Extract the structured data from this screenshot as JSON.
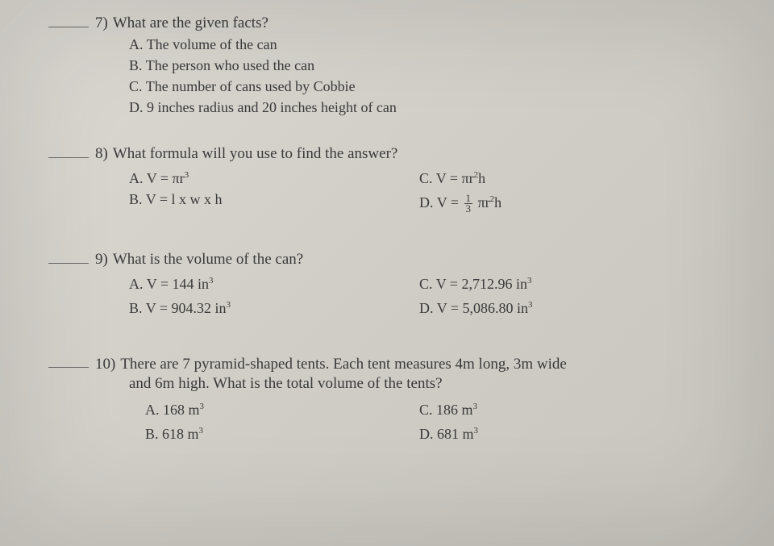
{
  "questions": [
    {
      "number": "7)",
      "stem": "What are the given facts?",
      "layout": "stack",
      "choices": [
        {
          "label": "A.",
          "text": "The volume of the can"
        },
        {
          "label": "B.",
          "text": "The person who used the can"
        },
        {
          "label": "C.",
          "text": "The number of cans used by Cobbie"
        },
        {
          "label": "D.",
          "text": "9 inches radius and 20 inches height of can"
        }
      ]
    },
    {
      "number": "8)",
      "stem": "What formula will you use to find the answer?",
      "layout": "two-col",
      "choices": [
        {
          "label": "A.",
          "html": "V = πr<sup>3</sup>"
        },
        {
          "label": "C.",
          "html": "V = πr<sup>2</sup>h"
        },
        {
          "label": "B.",
          "html": "V = l x w x h"
        },
        {
          "label": "D.",
          "html": "V = <span class='frac'><span class='num'>1</span><span class='den'>3</span></span> πr<sup>2</sup>h"
        }
      ]
    },
    {
      "number": "9)",
      "stem": "What is the volume of the can?",
      "layout": "two-col",
      "choices": [
        {
          "label": "A.",
          "html": "V = 144 in<sup>3</sup>"
        },
        {
          "label": "C.",
          "html": "V = 2,712.96 in<sup>3</sup>"
        },
        {
          "label": "B.",
          "html": "V = 904.32 in<sup>3</sup>"
        },
        {
          "label": "D.",
          "html": "V = 5,086.80 in<sup>3</sup>"
        }
      ]
    },
    {
      "number": "10)",
      "stem_lines": [
        "There are 7 pyramid-shaped tents. Each tent measures 4m long, 3m wide",
        "and 6m high. What is the total volume of the tents?"
      ],
      "layout": "two-col",
      "choices": [
        {
          "label": "A.",
          "html": "168 m<sup>3</sup>"
        },
        {
          "label": "C.",
          "html": "186 m<sup>3</sup>"
        },
        {
          "label": "B.",
          "html": "618 m<sup>3</sup>"
        },
        {
          "label": "D.",
          "html": "681 m<sup>3</sup>"
        }
      ]
    }
  ]
}
